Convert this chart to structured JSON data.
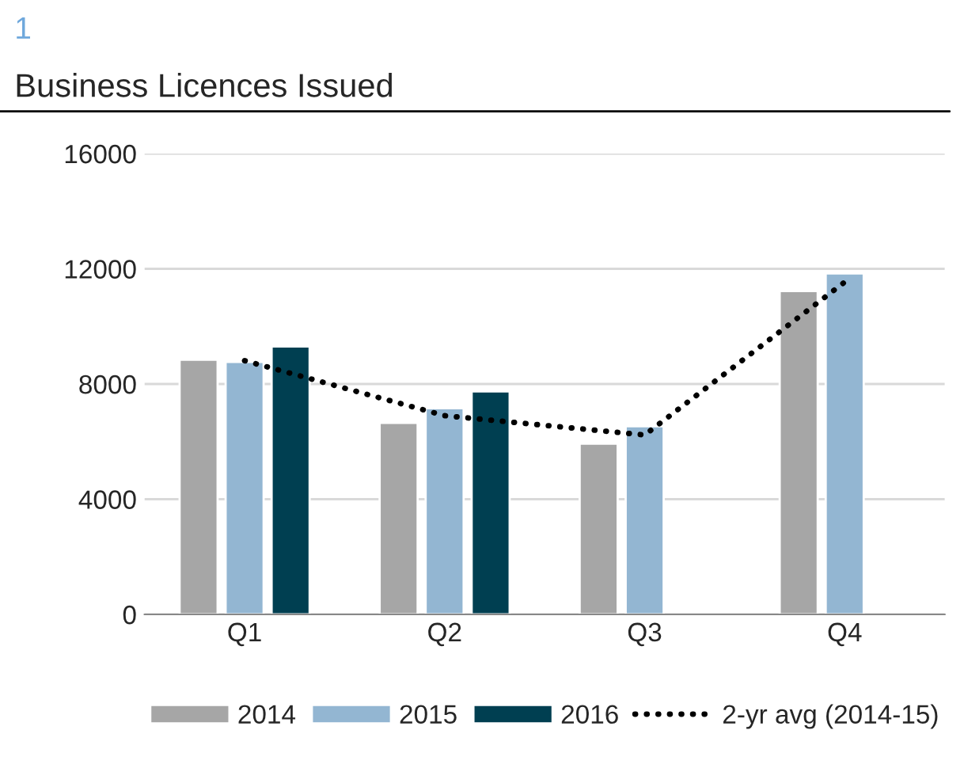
{
  "chart_data": {
    "type": "bar",
    "title": "Business Licences Issued",
    "annotations": [
      "1"
    ],
    "categories": [
      "Q1",
      "Q2",
      "Q3",
      "Q4"
    ],
    "series": [
      {
        "name": "2014",
        "color": "#a6a6a6",
        "values": [
          8840,
          6650,
          5930,
          11230
        ]
      },
      {
        "name": "2015",
        "color": "#93b6d2",
        "values": [
          8770,
          7160,
          6530,
          11840
        ]
      },
      {
        "name": "2016",
        "color": "#003f51",
        "values": [
          9300,
          7740,
          null,
          null
        ]
      },
      {
        "name": "2-yr avg (2014-15)",
        "type": "line",
        "color": "#000000",
        "line_style": "dotted",
        "values": [
          8810,
          6900,
          6230,
          11540
        ]
      }
    ],
    "ylim": [
      0,
      16000
    ],
    "yticks": [
      0,
      4000,
      8000,
      12000,
      16000
    ],
    "grid": "y",
    "legend": "bottom"
  }
}
